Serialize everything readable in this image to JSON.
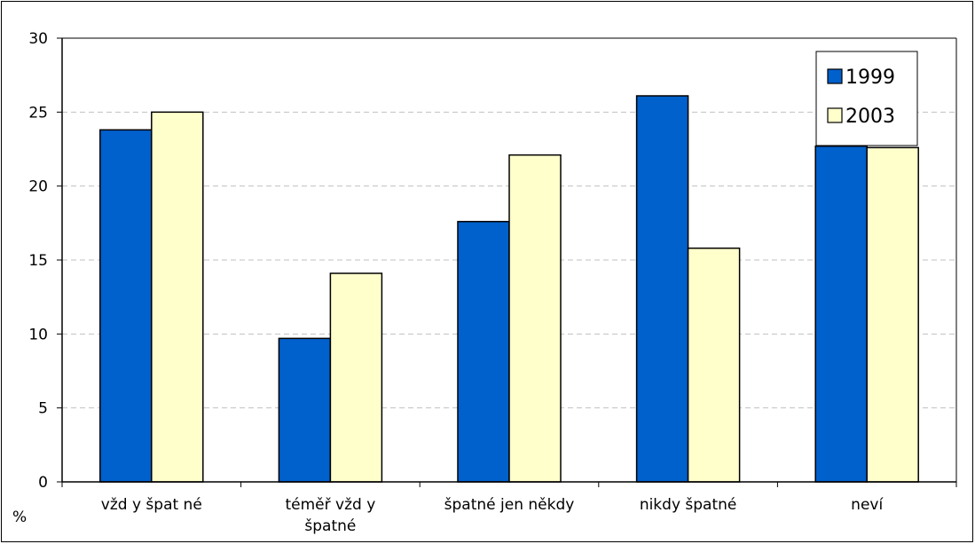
{
  "chart_data": {
    "type": "bar",
    "ylabel": "%",
    "ylim": [
      0,
      30
    ],
    "yticks": [
      "0",
      "5",
      "10",
      "15",
      "20",
      "25",
      "30"
    ],
    "grid": true,
    "legend_position": "top-right",
    "categories": [
      [
        "vžd y  špat né"
      ],
      [
        "téměř    vžd y",
        "špatné"
      ],
      [
        "špatné jen někdy"
      ],
      [
        "nikdy špatné"
      ],
      [
        "neví"
      ]
    ],
    "series": [
      {
        "name": "1999",
        "color": "#0060cc",
        "values": [
          23.8,
          9.7,
          17.6,
          26.1,
          22.7
        ]
      },
      {
        "name": "2003",
        "color": "#ffffcc",
        "values": [
          25.0,
          14.1,
          22.1,
          15.8,
          22.6
        ]
      }
    ]
  }
}
